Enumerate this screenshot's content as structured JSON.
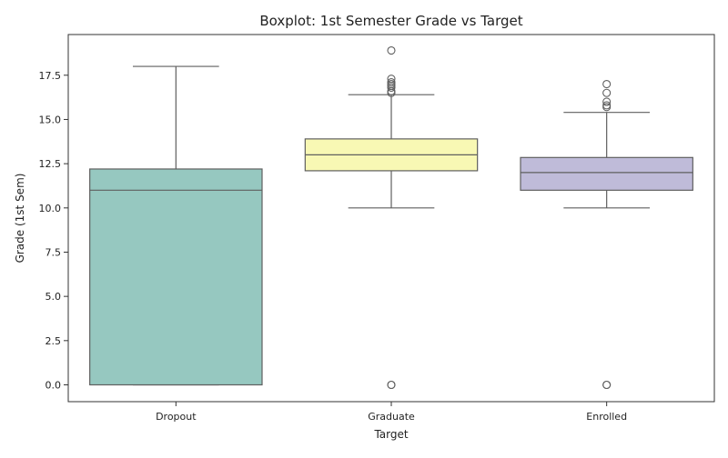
{
  "chart_data": {
    "type": "boxplot",
    "title": "Boxplot: 1st Semester Grade vs Target",
    "xlabel": "Target",
    "ylabel": "Grade (1st Sem)",
    "ylim": [
      -0.95,
      19.8
    ],
    "yticks": [
      0.0,
      2.5,
      5.0,
      7.5,
      10.0,
      12.5,
      15.0,
      17.5
    ],
    "ytick_labels": [
      "0.0",
      "2.5",
      "5.0",
      "7.5",
      "10.0",
      "12.5",
      "15.0",
      "17.5"
    ],
    "grid": false,
    "legend": "none",
    "categories": [
      "Dropout",
      "Graduate",
      "Enrolled"
    ],
    "colors": [
      "#96c8c0",
      "#f8f8b4",
      "#bfbbd9"
    ],
    "line_color": "#5f5f5f",
    "boxes": [
      {
        "category": "Dropout",
        "min": 0.0,
        "q1": 0.0,
        "median": 11.0,
        "q3": 12.2,
        "max": 18.0,
        "outliers": []
      },
      {
        "category": "Graduate",
        "min": 10.0,
        "q1": 12.1,
        "median": 13.0,
        "q3": 13.9,
        "max": 16.4,
        "outliers": [
          0.0,
          0.0,
          16.5,
          16.6,
          16.8,
          16.9,
          17.0,
          17.1,
          17.3,
          18.9
        ]
      },
      {
        "category": "Enrolled",
        "min": 10.0,
        "q1": 11.0,
        "median": 12.0,
        "q3": 12.85,
        "max": 15.4,
        "outliers": [
          0.0,
          0.0,
          15.7,
          15.8,
          16.0,
          16.5,
          17.0
        ]
      }
    ]
  }
}
